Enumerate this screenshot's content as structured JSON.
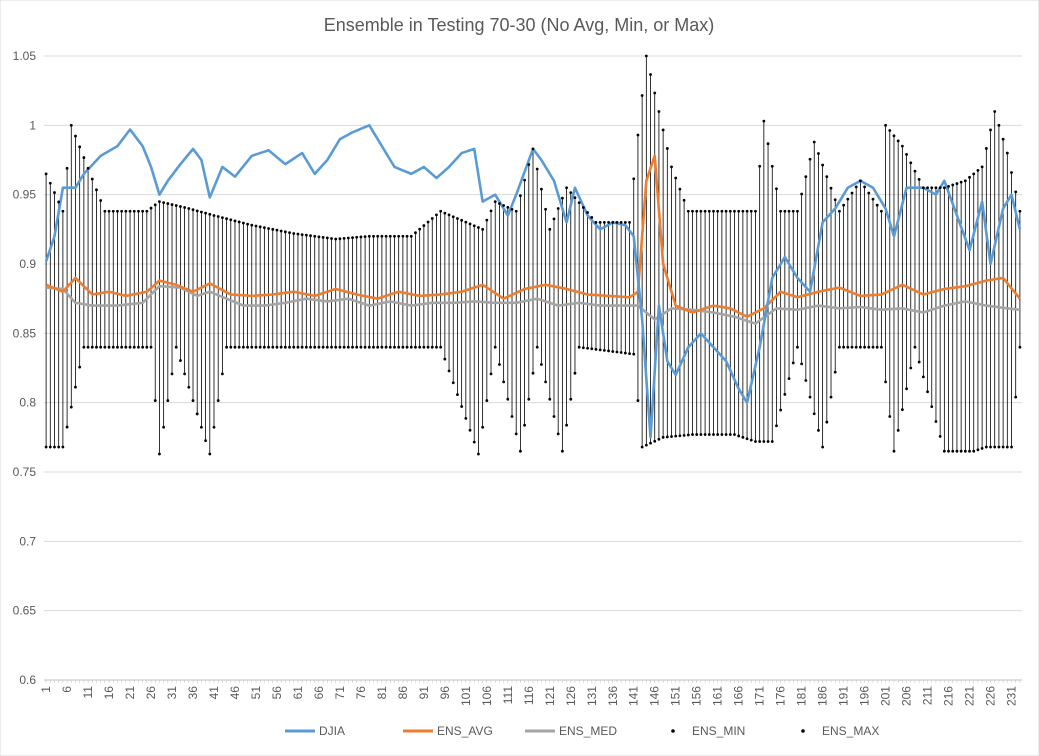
{
  "chart_data": {
    "type": "line",
    "title": "Ensemble in Testing 70-30 (No Avg, Min, or Max)",
    "xlabel": "",
    "ylabel": "",
    "ylim": [
      0.6,
      1.05
    ],
    "yticks": [
      "0.6",
      "0.65",
      "0.7",
      "0.75",
      "0.8",
      "0.85",
      "0.9",
      "0.95",
      "1",
      "1.05"
    ],
    "x_count": 233,
    "x_tick_labels": [
      "1",
      "6",
      "11",
      "16",
      "21",
      "26",
      "31",
      "36",
      "41",
      "46",
      "51",
      "56",
      "61",
      "66",
      "71",
      "76",
      "81",
      "86",
      "91",
      "96",
      "101",
      "106",
      "111",
      "116",
      "121",
      "126",
      "131",
      "136",
      "141",
      "146",
      "151",
      "156",
      "161",
      "166",
      "171",
      "176",
      "181",
      "186",
      "191",
      "196",
      "201",
      "206",
      "211",
      "216",
      "221",
      "226",
      "231"
    ],
    "grid": "horizontal",
    "legend_position": "bottom",
    "series": [
      {
        "name": "DJIA",
        "kind": "line",
        "color": "#5b9bd5",
        "keypoints": [
          [
            1,
            0.902
          ],
          [
            3,
            0.92
          ],
          [
            5,
            0.955
          ],
          [
            8,
            0.955
          ],
          [
            10,
            0.965
          ],
          [
            14,
            0.978
          ],
          [
            18,
            0.985
          ],
          [
            21,
            0.997
          ],
          [
            24,
            0.985
          ],
          [
            26,
            0.97
          ],
          [
            28,
            0.95
          ],
          [
            30,
            0.96
          ],
          [
            33,
            0.972
          ],
          [
            36,
            0.983
          ],
          [
            38,
            0.975
          ],
          [
            40,
            0.948
          ],
          [
            43,
            0.97
          ],
          [
            46,
            0.963
          ],
          [
            50,
            0.978
          ],
          [
            54,
            0.982
          ],
          [
            58,
            0.972
          ],
          [
            62,
            0.98
          ],
          [
            65,
            0.965
          ],
          [
            68,
            0.975
          ],
          [
            71,
            0.99
          ],
          [
            74,
            0.995
          ],
          [
            78,
            1.0
          ],
          [
            81,
            0.985
          ],
          [
            84,
            0.97
          ],
          [
            88,
            0.965
          ],
          [
            91,
            0.97
          ],
          [
            94,
            0.962
          ],
          [
            97,
            0.97
          ],
          [
            100,
            0.98
          ],
          [
            103,
            0.983
          ],
          [
            105,
            0.945
          ],
          [
            108,
            0.95
          ],
          [
            111,
            0.935
          ],
          [
            113,
            0.95
          ],
          [
            117,
            0.983
          ],
          [
            119,
            0.975
          ],
          [
            122,
            0.96
          ],
          [
            125,
            0.93
          ],
          [
            127,
            0.955
          ],
          [
            130,
            0.935
          ],
          [
            133,
            0.925
          ],
          [
            136,
            0.93
          ],
          [
            139,
            0.928
          ],
          [
            141,
            0.92
          ],
          [
            143,
            0.86
          ],
          [
            145,
            0.775
          ],
          [
            147,
            0.87
          ],
          [
            149,
            0.83
          ],
          [
            151,
            0.82
          ],
          [
            154,
            0.84
          ],
          [
            157,
            0.85
          ],
          [
            160,
            0.84
          ],
          [
            163,
            0.83
          ],
          [
            166,
            0.81
          ],
          [
            168,
            0.8
          ],
          [
            171,
            0.84
          ],
          [
            174,
            0.89
          ],
          [
            177,
            0.905
          ],
          [
            180,
            0.89
          ],
          [
            183,
            0.88
          ],
          [
            186,
            0.93
          ],
          [
            189,
            0.94
          ],
          [
            192,
            0.955
          ],
          [
            195,
            0.96
          ],
          [
            198,
            0.955
          ],
          [
            201,
            0.94
          ],
          [
            203,
            0.92
          ],
          [
            206,
            0.955
          ],
          [
            210,
            0.955
          ],
          [
            213,
            0.95
          ],
          [
            215,
            0.96
          ],
          [
            218,
            0.935
          ],
          [
            221,
            0.91
          ],
          [
            224,
            0.945
          ],
          [
            226,
            0.9
          ],
          [
            229,
            0.94
          ],
          [
            231,
            0.95
          ],
          [
            233,
            0.925
          ]
        ]
      },
      {
        "name": "ENS_AVG",
        "kind": "line",
        "color": "#ed7d31",
        "keypoints": [
          [
            1,
            0.885
          ],
          [
            5,
            0.88
          ],
          [
            8,
            0.89
          ],
          [
            12,
            0.878
          ],
          [
            16,
            0.88
          ],
          [
            20,
            0.877
          ],
          [
            25,
            0.88
          ],
          [
            28,
            0.888
          ],
          [
            32,
            0.885
          ],
          [
            36,
            0.88
          ],
          [
            40,
            0.886
          ],
          [
            45,
            0.878
          ],
          [
            50,
            0.877
          ],
          [
            55,
            0.878
          ],
          [
            60,
            0.88
          ],
          [
            65,
            0.877
          ],
          [
            70,
            0.882
          ],
          [
            75,
            0.878
          ],
          [
            80,
            0.875
          ],
          [
            85,
            0.88
          ],
          [
            90,
            0.877
          ],
          [
            95,
            0.878
          ],
          [
            100,
            0.88
          ],
          [
            105,
            0.885
          ],
          [
            110,
            0.875
          ],
          [
            115,
            0.882
          ],
          [
            120,
            0.885
          ],
          [
            125,
            0.882
          ],
          [
            130,
            0.878
          ],
          [
            135,
            0.877
          ],
          [
            140,
            0.876
          ],
          [
            142,
            0.88
          ],
          [
            144,
            0.96
          ],
          [
            146,
            0.978
          ],
          [
            148,
            0.9
          ],
          [
            151,
            0.87
          ],
          [
            155,
            0.865
          ],
          [
            160,
            0.87
          ],
          [
            164,
            0.868
          ],
          [
            168,
            0.862
          ],
          [
            172,
            0.868
          ],
          [
            176,
            0.88
          ],
          [
            180,
            0.876
          ],
          [
            185,
            0.88
          ],
          [
            190,
            0.883
          ],
          [
            195,
            0.877
          ],
          [
            200,
            0.878
          ],
          [
            205,
            0.885
          ],
          [
            210,
            0.878
          ],
          [
            215,
            0.882
          ],
          [
            220,
            0.884
          ],
          [
            225,
            0.888
          ],
          [
            229,
            0.89
          ],
          [
            233,
            0.875
          ]
        ]
      },
      {
        "name": "ENS_MED",
        "kind": "line",
        "color": "#a5a5a5",
        "keypoints": [
          [
            1,
            0.883
          ],
          [
            5,
            0.882
          ],
          [
            8,
            0.872
          ],
          [
            12,
            0.87
          ],
          [
            18,
            0.87
          ],
          [
            24,
            0.872
          ],
          [
            28,
            0.884
          ],
          [
            33,
            0.883
          ],
          [
            37,
            0.877
          ],
          [
            40,
            0.88
          ],
          [
            44,
            0.875
          ],
          [
            48,
            0.87
          ],
          [
            53,
            0.87
          ],
          [
            58,
            0.872
          ],
          [
            63,
            0.875
          ],
          [
            68,
            0.873
          ],
          [
            73,
            0.875
          ],
          [
            78,
            0.87
          ],
          [
            83,
            0.873
          ],
          [
            88,
            0.87
          ],
          [
            93,
            0.872
          ],
          [
            98,
            0.872
          ],
          [
            103,
            0.873
          ],
          [
            108,
            0.872
          ],
          [
            113,
            0.872
          ],
          [
            118,
            0.875
          ],
          [
            123,
            0.87
          ],
          [
            128,
            0.872
          ],
          [
            133,
            0.87
          ],
          [
            138,
            0.87
          ],
          [
            142,
            0.87
          ],
          [
            146,
            0.86
          ],
          [
            150,
            0.868
          ],
          [
            155,
            0.867
          ],
          [
            160,
            0.865
          ],
          [
            165,
            0.862
          ],
          [
            170,
            0.857
          ],
          [
            175,
            0.868
          ],
          [
            180,
            0.867
          ],
          [
            185,
            0.87
          ],
          [
            190,
            0.868
          ],
          [
            195,
            0.869
          ],
          [
            200,
            0.867
          ],
          [
            205,
            0.868
          ],
          [
            210,
            0.865
          ],
          [
            215,
            0.87
          ],
          [
            220,
            0.873
          ],
          [
            225,
            0.87
          ],
          [
            230,
            0.868
          ],
          [
            233,
            0.867
          ]
        ]
      },
      {
        "name": "ENS_MIN",
        "kind": "marker",
        "color": "#000000",
        "keypoints": [
          [
            1,
            0.768
          ],
          [
            5,
            0.768
          ],
          [
            10,
            0.84
          ],
          [
            20,
            0.84
          ],
          [
            26,
            0.84
          ],
          [
            28,
            0.763
          ],
          [
            32,
            0.84
          ],
          [
            40,
            0.763
          ],
          [
            44,
            0.84
          ],
          [
            55,
            0.84
          ],
          [
            65,
            0.84
          ],
          [
            75,
            0.84
          ],
          [
            85,
            0.84
          ],
          [
            95,
            0.84
          ],
          [
            104,
            0.763
          ],
          [
            108,
            0.84
          ],
          [
            114,
            0.765
          ],
          [
            118,
            0.84
          ],
          [
            124,
            0.765
          ],
          [
            128,
            0.84
          ],
          [
            141,
            0.835
          ],
          [
            143,
            0.768
          ],
          [
            148,
            0.775
          ],
          [
            155,
            0.777
          ],
          [
            165,
            0.777
          ],
          [
            170,
            0.772
          ],
          [
            174,
            0.772
          ],
          [
            180,
            0.84
          ],
          [
            186,
            0.768
          ],
          [
            190,
            0.84
          ],
          [
            200,
            0.84
          ],
          [
            203,
            0.765
          ],
          [
            208,
            0.84
          ],
          [
            215,
            0.765
          ],
          [
            222,
            0.765
          ],
          [
            225,
            0.768
          ],
          [
            231,
            0.768
          ],
          [
            233,
            0.84
          ]
        ]
      },
      {
        "name": "ENS_MAX",
        "kind": "marker",
        "color": "#000000",
        "keypoints": [
          [
            1,
            0.965
          ],
          [
            5,
            0.938
          ],
          [
            7,
            1.0
          ],
          [
            15,
            0.938
          ],
          [
            25,
            0.938
          ],
          [
            28,
            0.945
          ],
          [
            35,
            0.94
          ],
          [
            41,
            0.935
          ],
          [
            50,
            0.928
          ],
          [
            60,
            0.922
          ],
          [
            70,
            0.918
          ],
          [
            78,
            0.92
          ],
          [
            88,
            0.92
          ],
          [
            95,
            0.938
          ],
          [
            105,
            0.925
          ],
          [
            108,
            0.945
          ],
          [
            113,
            0.938
          ],
          [
            117,
            0.983
          ],
          [
            121,
            0.925
          ],
          [
            125,
            0.955
          ],
          [
            132,
            0.93
          ],
          [
            140,
            0.93
          ],
          [
            142,
            0.993
          ],
          [
            144,
            1.05
          ],
          [
            150,
            0.97
          ],
          [
            154,
            0.938
          ],
          [
            165,
            0.938
          ],
          [
            170,
            0.938
          ],
          [
            172,
            1.003
          ],
          [
            176,
            0.938
          ],
          [
            180,
            0.938
          ],
          [
            184,
            0.988
          ],
          [
            190,
            0.938
          ],
          [
            195,
            0.96
          ],
          [
            200,
            0.938
          ],
          [
            201,
            1.0
          ],
          [
            205,
            0.985
          ],
          [
            210,
            0.955
          ],
          [
            215,
            0.955
          ],
          [
            220,
            0.96
          ],
          [
            224,
            0.97
          ],
          [
            227,
            1.01
          ],
          [
            230,
            0.98
          ],
          [
            233,
            0.938
          ]
        ]
      }
    ]
  }
}
